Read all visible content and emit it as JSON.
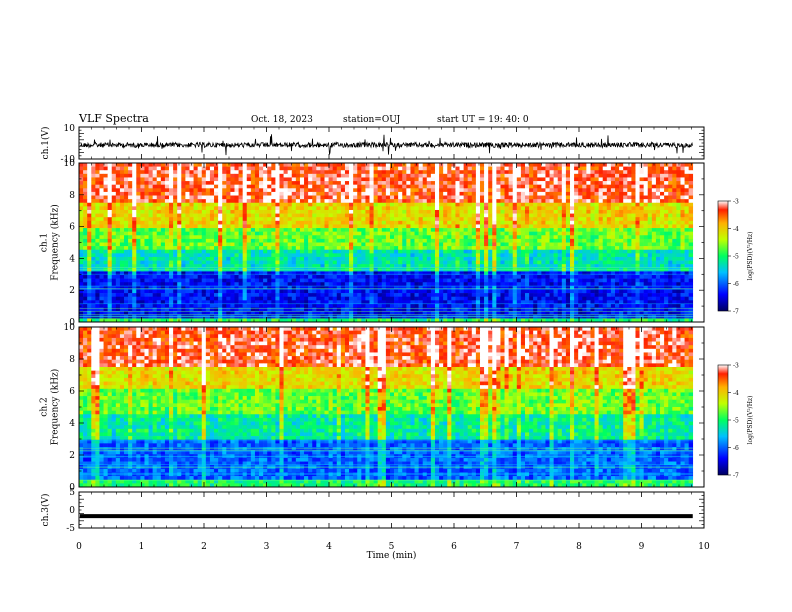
{
  "header": {
    "title": "VLF Spectra",
    "date": "Oct. 18, 2023",
    "station": "station=OUJ",
    "start": "start  UT =   19: 40: 0"
  },
  "chart_data": [
    {
      "type": "line",
      "name": "ch1-waveform",
      "ylabel": "ch.1(V)",
      "ylim": [
        -10,
        10
      ],
      "yticks": [
        "10",
        "-10"
      ],
      "xlim": [
        0,
        10
      ],
      "baseline": 0,
      "color": "#000000"
    },
    {
      "type": "heatmap",
      "name": "ch1-spectrogram",
      "ylabel": "ch.1\nFrequency (kHz)",
      "ylim": [
        0,
        10
      ],
      "yticks": [
        "0",
        "2",
        "4",
        "6",
        "8",
        "10"
      ],
      "xlim": [
        0,
        10
      ],
      "data_end_min": 9.82,
      "colorbar": {
        "label": "log(PSD)(V²/Hz)",
        "range": [
          -7,
          -3
        ],
        "ticks": [
          "-3",
          "-4",
          "-5",
          "-6",
          "-7"
        ]
      },
      "freq_bands_kHz": [
        {
          "from": 0,
          "to": 0.3,
          "level": -5.0
        },
        {
          "from": 0.3,
          "to": 3.2,
          "level": -6.4
        },
        {
          "from": 3.2,
          "to": 4.5,
          "level": -5.3
        },
        {
          "from": 4.5,
          "to": 6.0,
          "level": -4.7
        },
        {
          "from": 6.0,
          "to": 7.5,
          "level": -4.1
        },
        {
          "from": 7.5,
          "to": 10,
          "level": -3.3
        }
      ]
    },
    {
      "type": "heatmap",
      "name": "ch2-spectrogram",
      "ylabel": "ch.2\nFrequency (kHz)",
      "ylim": [
        0,
        10
      ],
      "yticks": [
        "0",
        "2",
        "4",
        "6",
        "8",
        "10"
      ],
      "xlim": [
        0,
        10
      ],
      "data_end_min": 9.82,
      "colorbar": {
        "label": "log(PSD)(V²/Hz)",
        "range": [
          -7,
          -3
        ],
        "ticks": [
          "-3",
          "-4",
          "-5",
          "-6",
          "-7"
        ]
      },
      "freq_bands_kHz": [
        {
          "from": 0,
          "to": 0.4,
          "level": -5.0
        },
        {
          "from": 0.4,
          "to": 3.0,
          "level": -6.0
        },
        {
          "from": 3.0,
          "to": 4.5,
          "level": -5.2
        },
        {
          "from": 4.5,
          "to": 6.2,
          "level": -4.7
        },
        {
          "from": 6.2,
          "to": 7.5,
          "level": -4.1
        },
        {
          "from": 7.5,
          "to": 10,
          "level": -3.3
        }
      ]
    },
    {
      "type": "line",
      "name": "ch3-waveform",
      "ylabel": "ch.3(V)",
      "ylim": [
        -5,
        5
      ],
      "yticks": [
        "5",
        "0",
        "-5"
      ],
      "xlim": [
        0,
        10
      ],
      "values_constant": -1.7,
      "color": "#000000"
    }
  ],
  "xaxis": {
    "label": "Time (min)",
    "ticks": [
      "0",
      "1",
      "2",
      "3",
      "4",
      "5",
      "6",
      "7",
      "8",
      "9",
      "10"
    ]
  }
}
